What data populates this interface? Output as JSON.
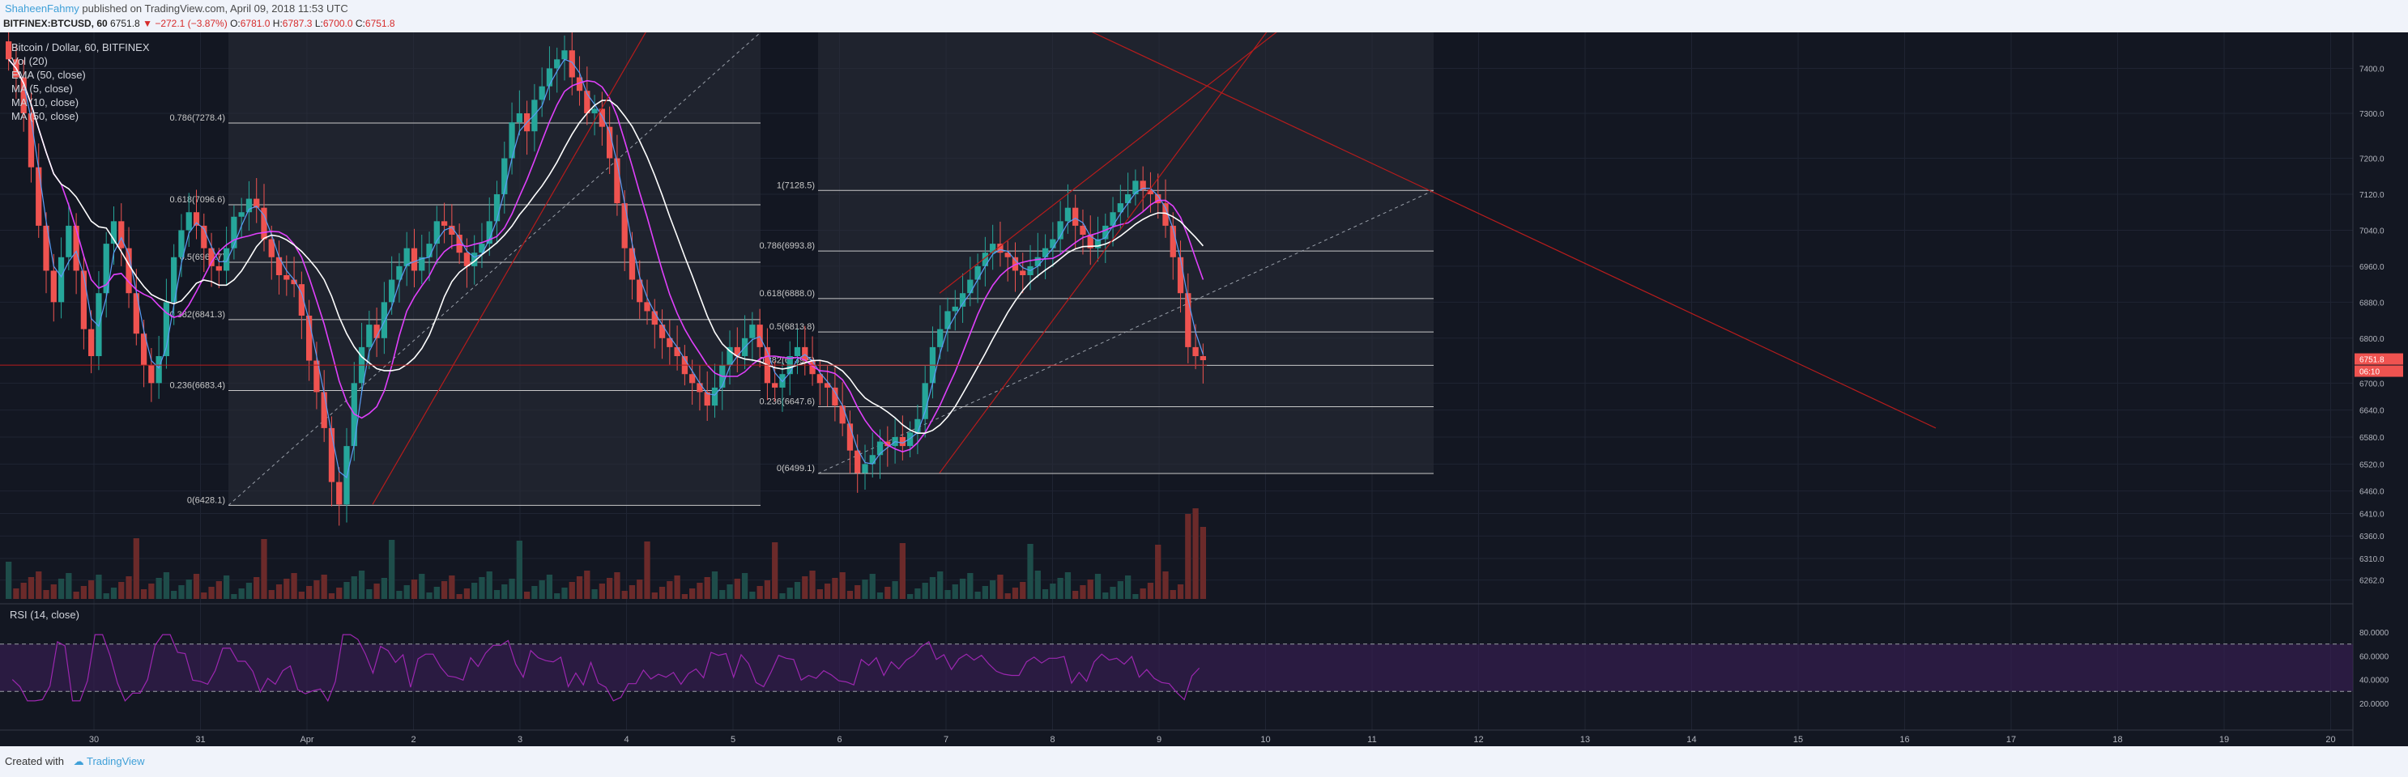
{
  "header": {
    "author": "ShaheenFahmy",
    "published_text": " published on TradingView.com, April 09, 2018 11:53 UTC",
    "symbol": "BITFINEX:BTCUSD, 60",
    "last": "6751.8",
    "change": "−272.1 (−3.87%)",
    "o_label": "O:",
    "o_val": "6781.0",
    "h_label": "H:",
    "h_val": "6787.3",
    "l_label": "L:",
    "l_val": "6700.0",
    "c_label": "C:",
    "c_val": "6751.8"
  },
  "legend": {
    "title": "Bitcoin / Dollar, 60, BITFINEX",
    "items": [
      "Vol (20)",
      "EMA (50, close)",
      "MA (5, close)",
      "MA (10, close)",
      "MA (50, close)"
    ]
  },
  "rsi_label": "RSI (14, close)",
  "footer": {
    "created": "Created with",
    "brand": "TradingView"
  },
  "price_badge": "6751.8",
  "price_badge2": "06:10",
  "colors": {
    "background": "#131722",
    "up": "#26a69a",
    "down": "#ef5350",
    "ema": "#ffffff",
    "ma5": "#5b9cf6",
    "ma10": "#e040fb",
    "trend": "#b71c1c",
    "rsi": "#9c27b0"
  },
  "chart_data": {
    "type": "candlestick",
    "x_axis": {
      "ticks": [
        "30",
        "31",
        "Apr",
        "2",
        "3",
        "4",
        "5",
        "6",
        "7",
        "8",
        "9",
        "10",
        "11",
        "12",
        "13",
        "14",
        "15",
        "16",
        "17",
        "18",
        "19",
        "20"
      ]
    },
    "y_axis": {
      "ticks": [
        "7400.0",
        "7300.0",
        "7200.0",
        "7120.0",
        "7040.0",
        "6960.0",
        "6880.0",
        "6800.0",
        "6700.0",
        "6640.0",
        "6580.0",
        "6520.0",
        "6460.0",
        "6410.0",
        "6360.0",
        "6310.0",
        "6262.0"
      ]
    },
    "fib_left": [
      {
        "label": "0.786(7278.4)",
        "value": 7278.4
      },
      {
        "label": "0.618(7096.6)",
        "value": 7096.6
      },
      {
        "label": "0.5(6968.7)",
        "value": 6968.7
      },
      {
        "label": "0.382(6841.3)",
        "value": 6841.3
      },
      {
        "label": "0.236(6683.4)",
        "value": 6683.4
      },
      {
        "label": "0(6428.1)",
        "value": 6428.1
      }
    ],
    "fib_right": [
      {
        "label": "1(7128.5)",
        "value": 7128.5
      },
      {
        "label": "0.786(6993.8)",
        "value": 6993.8
      },
      {
        "label": "0.618(6888.0)",
        "value": 6888.0
      },
      {
        "label": "0.5(6813.8)",
        "value": 6813.8
      },
      {
        "label": "0.382(6739.5)",
        "value": 6739.5
      },
      {
        "label": "0.236(6647.6)",
        "value": 6647.6
      },
      {
        "label": "0(6499.1)",
        "value": 6499.1
      }
    ],
    "rsi_ticks": [
      "80.0000",
      "60.0000",
      "40.0000",
      "20.0000"
    ],
    "rsi_bands": [
      70,
      30
    ],
    "closes": [
      7420,
      7380,
      7300,
      7180,
      7050,
      6950,
      6880,
      6980,
      7050,
      6950,
      6820,
      6760,
      6900,
      7010,
      7060,
      7000,
      6900,
      6810,
      6740,
      6700,
      6760,
      6880,
      6980,
      7040,
      7080,
      7050,
      7000,
      6960,
      6950,
      7000,
      7070,
      7080,
      7110,
      7090,
      7020,
      6980,
      6940,
      6930,
      6920,
      6850,
      6750,
      6680,
      6600,
      6480,
      6430,
      6560,
      6700,
      6780,
      6830,
      6800,
      6880,
      6930,
      6960,
      7000,
      6950,
      6980,
      7010,
      7060,
      7050,
      7030,
      6990,
      6960,
      6990,
      7010,
      7060,
      7120,
      7200,
      7280,
      7300,
      7260,
      7330,
      7360,
      7400,
      7420,
      7440,
      7380,
      7350,
      7300,
      7310,
      7270,
      7200,
      7100,
      7000,
      6930,
      6880,
      6860,
      6830,
      6800,
      6780,
      6760,
      6720,
      6700,
      6680,
      6650,
      6690,
      6740,
      6780,
      6760,
      6800,
      6830,
      6780,
      6700,
      6690,
      6720,
      6760,
      6780,
      6750,
      6720,
      6700,
      6690,
      6650,
      6610,
      6550,
      6500,
      6520,
      6540,
      6570,
      6560,
      6580,
      6560,
      6590,
      6620,
      6700,
      6780,
      6820,
      6860,
      6870,
      6900,
      6930,
      6960,
      6990,
      7010,
      6990,
      6980,
      6950,
      6940,
      6960,
      6980,
      7000,
      7020,
      7060,
      7090,
      7050,
      7030,
      7000,
      7020,
      7050,
      7080,
      7100,
      7120,
      7150,
      7130,
      7120,
      7100,
      7050,
      6980,
      6900,
      6780,
      6760,
      6751
    ]
  }
}
